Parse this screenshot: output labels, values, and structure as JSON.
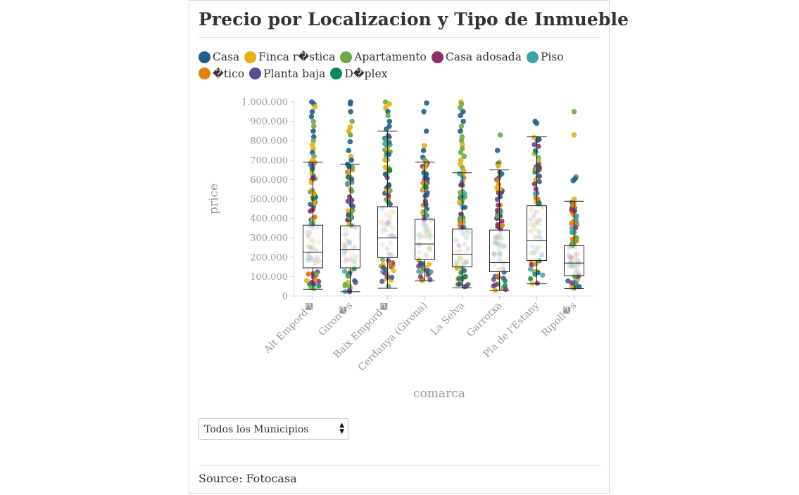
{
  "title": "Precio por Localizacion y Tipo de Inmueble",
  "legend": [
    {
      "label": "Casa",
      "color": "#1f5f8b"
    },
    {
      "label": "Finca r�stica",
      "color": "#e8b008"
    },
    {
      "label": "Apartamento",
      "color": "#6bab45"
    },
    {
      "label": "Casa adosada",
      "color": "#8e2e68"
    },
    {
      "label": "Piso",
      "color": "#39a5a5"
    },
    {
      "label": "�tico",
      "color": "#e37f0a"
    },
    {
      "label": "Planta baja",
      "color": "#5c4896"
    },
    {
      "label": "D�plex",
      "color": "#10855a"
    }
  ],
  "dropdown": {
    "selected": "Todos los Municipios"
  },
  "source": "Source: Fotocasa",
  "chart_data": {
    "type": "boxplot",
    "xlabel": "comarca",
    "ylabel": "price",
    "ylim": [
      0,
      1000000
    ],
    "yticks": [
      0,
      100000,
      200000,
      300000,
      400000,
      500000,
      600000,
      700000,
      800000,
      900000,
      1000000
    ],
    "ytick_labels": [
      "0",
      "100.000",
      "200.000",
      "300.000",
      "400.000",
      "500.000",
      "600.000",
      "700.000",
      "800.000",
      "900.000",
      "1.000.000"
    ],
    "categories": [
      "Alt Empord�",
      "Giron�s",
      "Baix Empord�",
      "Cerdanya (Girona)",
      "La Selva",
      "Garrotxa",
      "Pla de l'Estany",
      "Ripoll�s"
    ],
    "boxes": [
      {
        "min": 35000,
        "q1": 145000,
        "median": 225000,
        "q3": 365000,
        "max": 690000
      },
      {
        "min": 22000,
        "q1": 145000,
        "median": 240000,
        "q3": 362000,
        "max": 680000
      },
      {
        "min": 40000,
        "q1": 198000,
        "median": 300000,
        "q3": 460000,
        "max": 850000
      },
      {
        "min": 78000,
        "q1": 188000,
        "median": 268000,
        "q3": 395000,
        "max": 690000
      },
      {
        "min": 42000,
        "q1": 150000,
        "median": 215000,
        "q3": 345000,
        "max": 635000
      },
      {
        "min": 28000,
        "q1": 125000,
        "median": 172000,
        "q3": 340000,
        "max": 650000
      },
      {
        "min": 63000,
        "q1": 183000,
        "median": 285000,
        "q3": 465000,
        "max": 820000
      },
      {
        "min": 38000,
        "q1": 105000,
        "median": 170000,
        "q3": 260000,
        "max": 488000
      }
    ],
    "outliers": [
      [
        1000000,
        990000,
        975000,
        950000,
        925000,
        900000,
        875000,
        850000,
        820000,
        800000,
        780000,
        760000,
        740000,
        720000,
        700000
      ],
      [
        1000000,
        990000,
        950000,
        900000,
        870000,
        850000,
        830000,
        795000,
        750000,
        720000,
        700000
      ],
      [
        1000000,
        990000,
        970000,
        950000,
        930000,
        900000,
        875000,
        860000
      ],
      [
        995000,
        950000,
        850000,
        775000,
        750000,
        715000,
        700000
      ],
      [
        1000000,
        990000,
        970000,
        950000,
        930000,
        900000,
        875000,
        850000,
        820000,
        800000,
        780000,
        760000,
        740000,
        720000,
        700000,
        680000,
        660000,
        645000
      ],
      [
        830000,
        750000,
        690000,
        680000,
        670000
      ],
      [
        900000,
        890000
      ],
      [
        950000,
        830000,
        615000,
        605000,
        595000,
        500000
      ]
    ]
  }
}
